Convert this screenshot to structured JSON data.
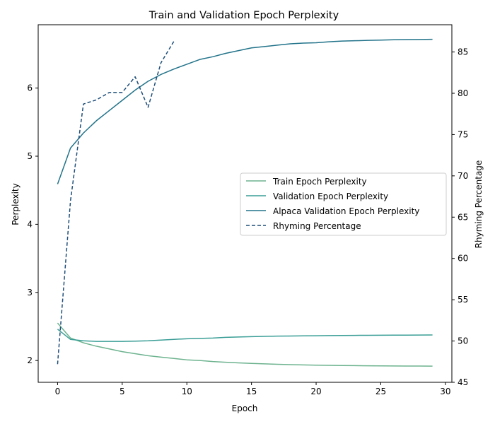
{
  "chart_data": {
    "type": "line",
    "title": "Train and Validation Epoch Perplexity",
    "xlabel": "Epoch",
    "ylabel": "Perplexity",
    "y2label": "Rhyming Percentage",
    "xlim": [
      -1.5,
      30.5
    ],
    "ylim": [
      1.68,
      6.93
    ],
    "y2lim": [
      45.0,
      88.3
    ],
    "xticks": [
      0,
      5,
      10,
      15,
      20,
      25,
      30
    ],
    "yticks": [
      2,
      3,
      4,
      5,
      6
    ],
    "y2ticks": [
      45,
      50,
      55,
      60,
      65,
      70,
      75,
      80,
      85
    ],
    "legend_position": "center-right",
    "grid": false,
    "series": [
      {
        "name": "Train Epoch Perplexity",
        "axis": "left",
        "color": "#6db38f",
        "dash": "solid",
        "x": [
          0,
          1,
          2,
          3,
          4,
          5,
          6,
          7,
          8,
          9,
          10,
          11,
          12,
          13,
          14,
          15,
          16,
          17,
          18,
          19,
          20,
          21,
          22,
          23,
          24,
          25,
          26,
          27,
          28,
          29
        ],
        "y": [
          2.55,
          2.33,
          2.26,
          2.21,
          2.17,
          2.13,
          2.1,
          2.07,
          2.05,
          2.03,
          2.01,
          2.0,
          1.985,
          1.975,
          1.965,
          1.958,
          1.951,
          1.945,
          1.94,
          1.936,
          1.932,
          1.929,
          1.927,
          1.925,
          1.923,
          1.921,
          1.92,
          1.919,
          1.918,
          1.917
        ]
      },
      {
        "name": "Validation Epoch Perplexity",
        "axis": "left",
        "color": "#3a9e96",
        "dash": "solid",
        "x": [
          0,
          1,
          2,
          3,
          4,
          5,
          6,
          7,
          8,
          9,
          10,
          11,
          12,
          13,
          14,
          15,
          16,
          17,
          18,
          19,
          20,
          21,
          22,
          23,
          24,
          25,
          26,
          27,
          28,
          29
        ],
        "y": [
          2.46,
          2.31,
          2.29,
          2.28,
          2.28,
          2.28,
          2.285,
          2.29,
          2.3,
          2.31,
          2.32,
          2.325,
          2.33,
          2.34,
          2.345,
          2.35,
          2.355,
          2.358,
          2.36,
          2.362,
          2.364,
          2.366,
          2.368,
          2.369,
          2.37,
          2.371,
          2.372,
          2.373,
          2.374,
          2.375
        ]
      },
      {
        "name": "Alpaca Validation Epoch Perplexity",
        "axis": "left",
        "color": "#22738a",
        "dash": "solid",
        "x": [
          0,
          1,
          2,
          3,
          4,
          5,
          6,
          7,
          8,
          9,
          10,
          11,
          12,
          13,
          14,
          15,
          16,
          17,
          18,
          19,
          20,
          21,
          22,
          23,
          24,
          25,
          26,
          27,
          28,
          29
        ],
        "y": [
          4.59,
          5.12,
          5.34,
          5.52,
          5.67,
          5.82,
          5.97,
          6.1,
          6.2,
          6.28,
          6.35,
          6.42,
          6.46,
          6.51,
          6.55,
          6.59,
          6.61,
          6.63,
          6.65,
          6.66,
          6.665,
          6.68,
          6.69,
          6.695,
          6.7,
          6.705,
          6.71,
          6.712,
          6.714,
          6.716
        ]
      },
      {
        "name": "Rhyming Percentage",
        "axis": "right",
        "color": "#1f4e79",
        "dash": "dashed",
        "x": [
          0,
          1,
          2,
          3,
          4,
          5,
          6,
          7,
          8,
          9
        ],
        "y": [
          47.2,
          67.0,
          78.7,
          79.2,
          80.1,
          80.1,
          82.0,
          78.3,
          83.7,
          86.3
        ]
      }
    ]
  }
}
